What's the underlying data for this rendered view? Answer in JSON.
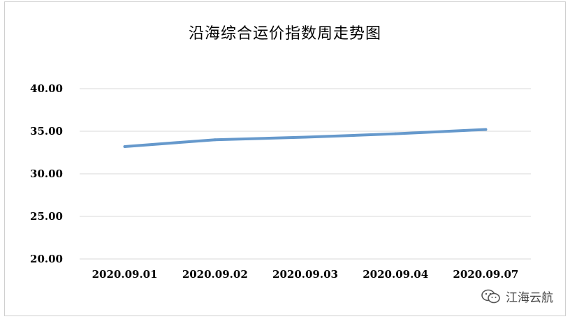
{
  "chart_data": {
    "type": "line",
    "title": "沿海综合运价指数周走势图",
    "categories": [
      "2020.09.01",
      "2020.09.02",
      "2020.09.03",
      "2020.09.04",
      "2020.09.07"
    ],
    "series": [
      {
        "values": [
          33.2,
          34.0,
          34.3,
          34.7,
          35.2
        ]
      }
    ],
    "y_ticks": [
      "20.00",
      "25.00",
      "30.00",
      "35.00",
      "40.00"
    ],
    "ylim": [
      20,
      40
    ],
    "grid": true,
    "legend": "none",
    "line_color": "#6699cc",
    "grid_color": "#d9d9d9"
  },
  "watermark": {
    "text": "江海云航",
    "icon": "wechat-logo-icon"
  }
}
